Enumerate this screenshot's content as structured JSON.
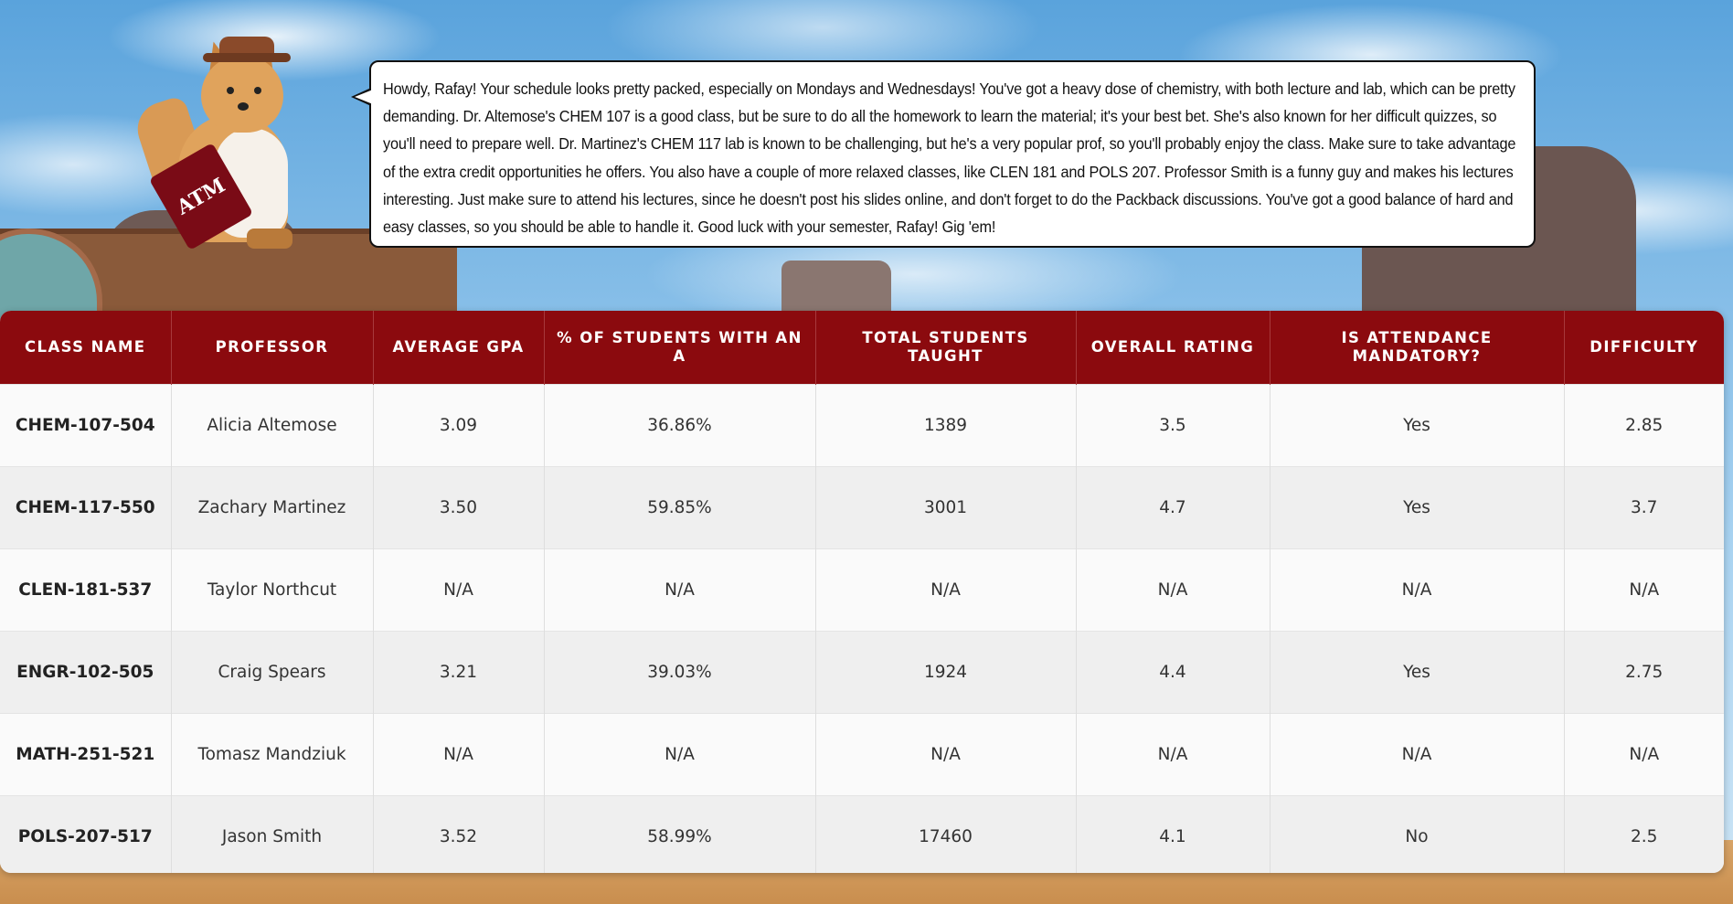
{
  "advisor": {
    "mascot_name": "reveille-mascot",
    "blanket_text": "ATM",
    "message": "Howdy, Rafay! Your schedule looks pretty packed, especially on Mondays and Wednesdays! You've got a heavy dose of chemistry, with both lecture and lab, which can be pretty demanding. Dr. Altemose's CHEM 107 is a good class, but be sure to do all the homework to learn the material; it's your best bet. She's also known for her difficult quizzes, so you'll need to prepare well. Dr. Martinez's CHEM 117 lab is known to be challenging, but he's a very popular prof, so you'll probably enjoy the class. Make sure to take advantage of the extra credit opportunities he offers. You also have a couple of more relaxed classes, like CLEN 181 and POLS 207. Professor Smith is a funny guy and makes his lectures interesting. Just make sure to attend his lectures, since he doesn't post his slides online, and don't forget to do the Packback discussions. You've got a good balance of hard and easy classes, so you should be able to handle it. Good luck with your semester, Rafay! Gig 'em!"
  },
  "table": {
    "headers": [
      "Class Name",
      "Professor",
      "Average GPA",
      "% of Students With an A",
      "Total Students Taught",
      "Overall Rating",
      "Is Attendance Mandatory?",
      "Difficulty"
    ],
    "rows": [
      {
        "class_name": "CHEM-107-504",
        "professor": "Alicia Altemose",
        "avg_gpa": "3.09",
        "pct_a": "36.86%",
        "total_students": "1389",
        "rating": "3.5",
        "attendance": "Yes",
        "difficulty": "2.85"
      },
      {
        "class_name": "CHEM-117-550",
        "professor": "Zachary Martinez",
        "avg_gpa": "3.50",
        "pct_a": "59.85%",
        "total_students": "3001",
        "rating": "4.7",
        "attendance": "Yes",
        "difficulty": "3.7"
      },
      {
        "class_name": "CLEN-181-537",
        "professor": "Taylor Northcut",
        "avg_gpa": "N/A",
        "pct_a": "N/A",
        "total_students": "N/A",
        "rating": "N/A",
        "attendance": "N/A",
        "difficulty": "N/A"
      },
      {
        "class_name": "ENGR-102-505",
        "professor": "Craig Spears",
        "avg_gpa": "3.21",
        "pct_a": "39.03%",
        "total_students": "1924",
        "rating": "4.4",
        "attendance": "Yes",
        "difficulty": "2.75"
      },
      {
        "class_name": "MATH-251-521",
        "professor": "Tomasz Mandziuk",
        "avg_gpa": "N/A",
        "pct_a": "N/A",
        "total_students": "N/A",
        "rating": "N/A",
        "attendance": "N/A",
        "difficulty": "N/A"
      },
      {
        "class_name": "POLS-207-517",
        "professor": "Jason Smith",
        "avg_gpa": "3.52",
        "pct_a": "58.99%",
        "total_students": "17460",
        "rating": "4.1",
        "attendance": "No",
        "difficulty": "2.5"
      }
    ]
  },
  "colors": {
    "header_bg": "#8b0a0e",
    "header_text": "#ffffff",
    "row_odd": "#fafafa",
    "row_even": "#efefef"
  }
}
